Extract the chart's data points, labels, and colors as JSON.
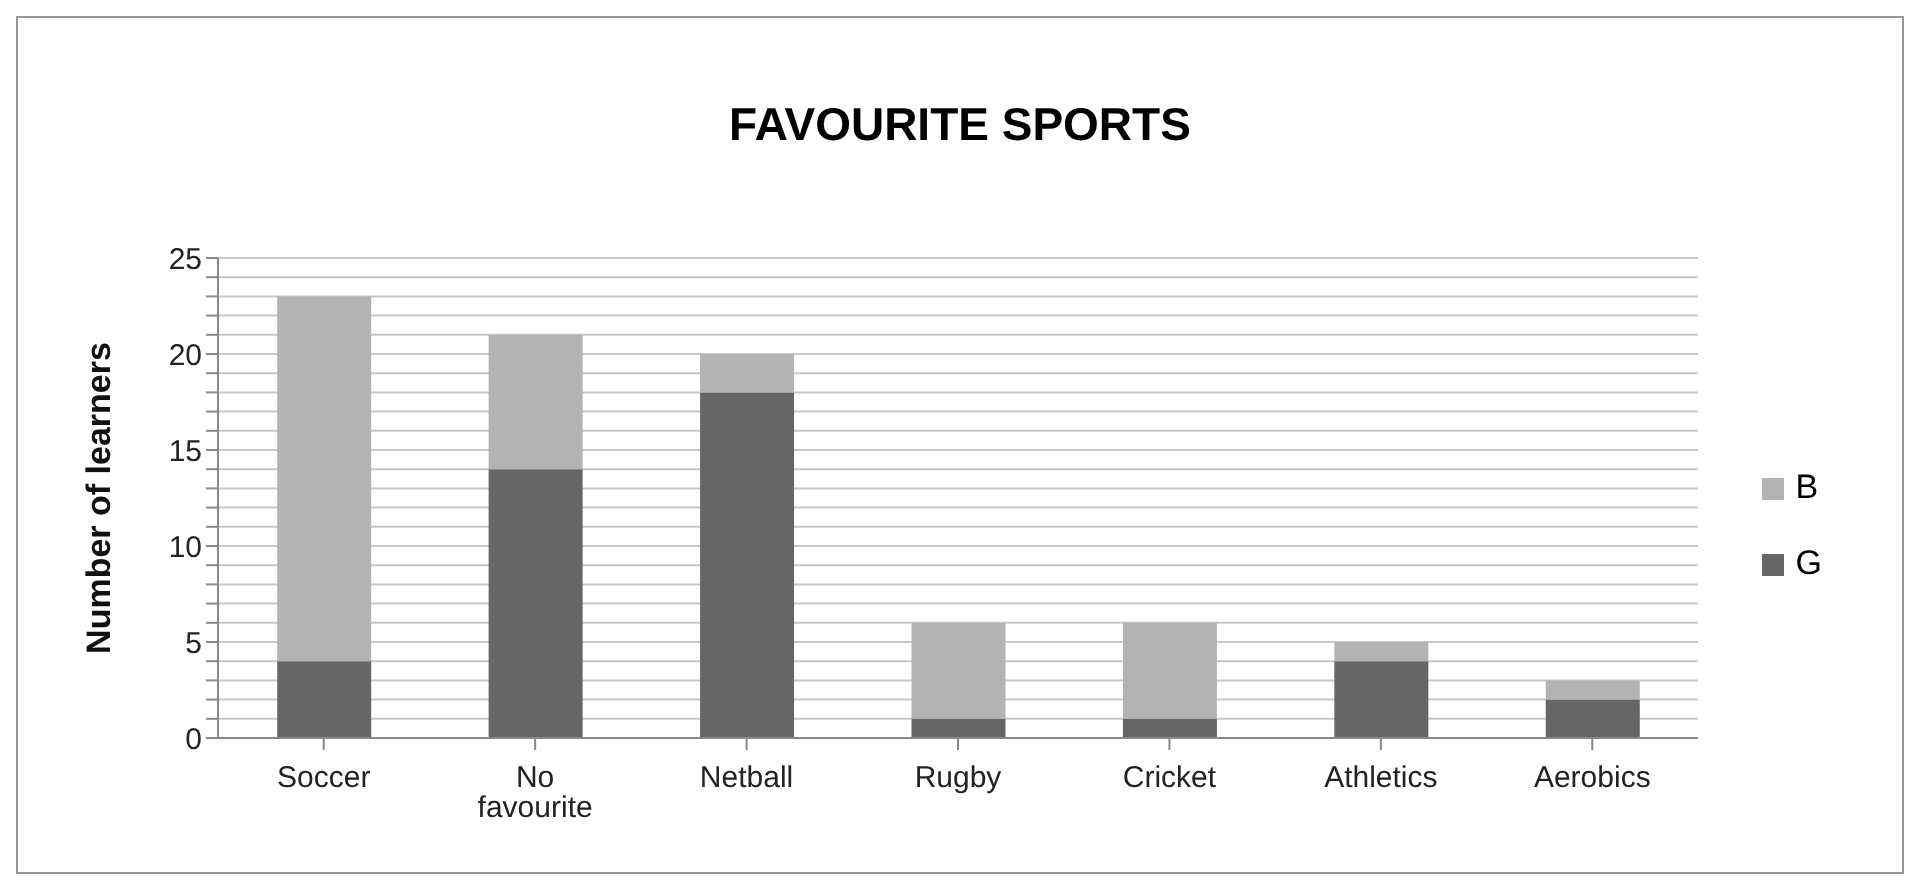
{
  "chart_data": {
    "type": "bar",
    "title": "FAVOURITE SPORTS",
    "ylabel": "Number of learners",
    "categories": [
      "Soccer",
      "No favourite",
      "Netball",
      "Rugby",
      "Cricket",
      "Athletics",
      "Aerobics"
    ],
    "stacked": true,
    "series": [
      {
        "name": "G",
        "color": "#666666",
        "values": [
          4,
          14,
          18,
          1,
          1,
          4,
          2
        ]
      },
      {
        "name": "B",
        "color": "#b3b3b3",
        "values": [
          19,
          7,
          2,
          5,
          5,
          1,
          1
        ]
      }
    ],
    "ylim": [
      0,
      25
    ],
    "yticks": [
      0,
      {
        "value": 1,
        "label": null
      },
      {
        "value": 2,
        "label": null
      },
      {
        "value": 3,
        "label": null
      },
      {
        "value": 4,
        "label": null
      },
      5,
      {
        "value": 6,
        "label": null
      },
      {
        "value": 7,
        "label": null
      },
      {
        "value": 8,
        "label": null
      },
      {
        "value": 9,
        "label": null
      },
      10,
      {
        "value": 11,
        "label": null
      },
      {
        "value": 12,
        "label": null
      },
      {
        "value": 13,
        "label": null
      },
      {
        "value": 14,
        "label": null
      },
      15,
      {
        "value": 16,
        "label": null
      },
      {
        "value": 17,
        "label": null
      },
      {
        "value": 18,
        "label": null
      },
      {
        "value": 19,
        "label": null
      },
      20,
      {
        "value": 21,
        "label": null
      },
      {
        "value": 22,
        "label": null
      },
      {
        "value": 23,
        "label": null
      },
      {
        "value": 24,
        "label": null
      },
      25
    ],
    "grid": "y",
    "legend": "right"
  }
}
